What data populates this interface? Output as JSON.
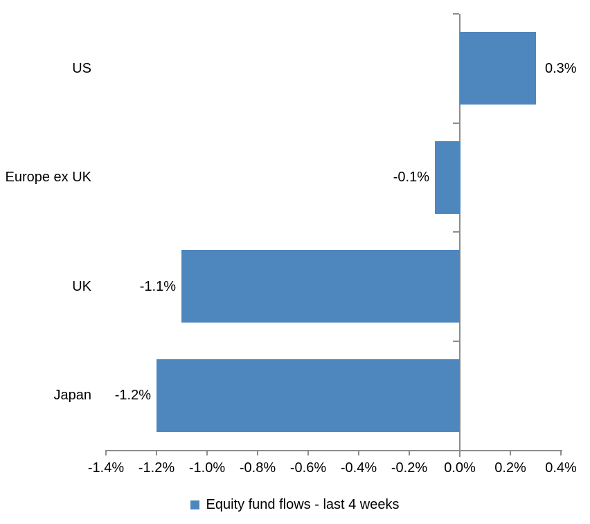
{
  "chart_data": {
    "type": "bar",
    "orientation": "horizontal",
    "title": "",
    "categories": [
      "US",
      "Europe ex UK",
      "UK",
      "Japan"
    ],
    "series": [
      {
        "name": "Equity fund flows - last 4 weeks",
        "values": [
          0.3,
          -0.1,
          -1.1,
          -1.2
        ],
        "data_labels": [
          "0.3%",
          "-0.1%",
          "-1.1%",
          "-1.2%"
        ],
        "color": "#4E87BE"
      }
    ],
    "xlabel": "",
    "ylabel": "",
    "xlim": [
      -1.4,
      0.4
    ],
    "x_ticks": [
      {
        "value": -1.4,
        "label": "-1.4%"
      },
      {
        "value": -1.2,
        "label": "-1.2%"
      },
      {
        "value": -1.0,
        "label": "-1.0%"
      },
      {
        "value": -0.8,
        "label": "-0.8%"
      },
      {
        "value": -0.6,
        "label": "-0.6%"
      },
      {
        "value": -0.4,
        "label": "-0.4%"
      },
      {
        "value": -0.2,
        "label": "-0.2%"
      },
      {
        "value": 0.0,
        "label": "0.0%"
      },
      {
        "value": 0.2,
        "label": "0.2%"
      },
      {
        "value": 0.4,
        "label": "0.4%"
      }
    ],
    "grid": false,
    "legend_position": "bottom-center",
    "data_label_position": "outside-end"
  },
  "colors": {
    "bar": "#4E87BE",
    "axis": "#8C8C8C",
    "text": "#000000",
    "background": "#FFFFFF"
  }
}
